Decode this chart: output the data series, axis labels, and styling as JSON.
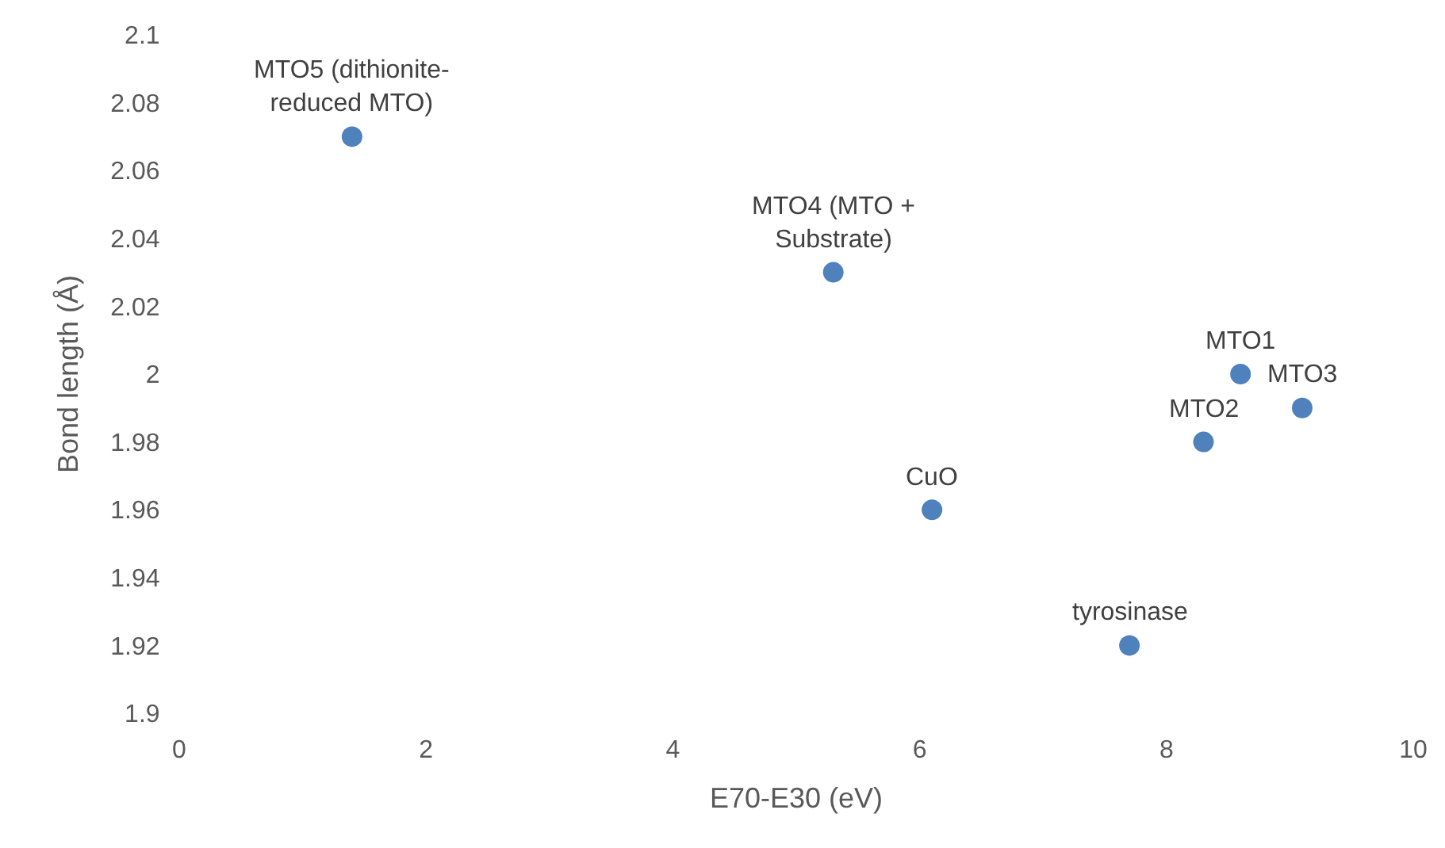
{
  "chart_data": {
    "type": "scatter",
    "xlabel": "E70-E30 (eV)",
    "ylabel": "Bond length (Å)",
    "x": [
      1.4,
      5.3,
      8.6,
      9.1,
      8.3,
      6.1,
      7.7
    ],
    "series": [
      {
        "color": "#4f81bd",
        "values": [
          2.07,
          2.03,
          2.0,
          1.99,
          1.98,
          1.96,
          1.92
        ]
      }
    ],
    "xlim": [
      0,
      10
    ],
    "xticks": [
      0,
      2,
      4,
      6,
      8,
      10
    ],
    "ylim": [
      1.9,
      2.1
    ],
    "yticks": [
      1.9,
      1.92,
      1.94,
      1.96,
      1.98,
      2,
      2.02,
      2.04,
      2.06,
      2.08,
      2.1
    ],
    "marker": "circle",
    "annotations": [
      {
        "text": "MTO5 (dithionite-\nreduced MTO)",
        "x": 1.4,
        "y": 2.07
      },
      {
        "text": "MTO4 (MTO +\nSubstrate)",
        "x": 5.3,
        "y": 2.03
      },
      {
        "text": "MTO1",
        "x": 8.6,
        "y": 2.0
      },
      {
        "text": "MTO3",
        "x": 9.1,
        "y": 1.99
      },
      {
        "text": "MTO2",
        "x": 8.3,
        "y": 1.98
      },
      {
        "text": "CuO",
        "x": 6.1,
        "y": 1.96
      },
      {
        "text": "tyrosinase",
        "x": 7.7,
        "y": 1.92
      }
    ]
  }
}
